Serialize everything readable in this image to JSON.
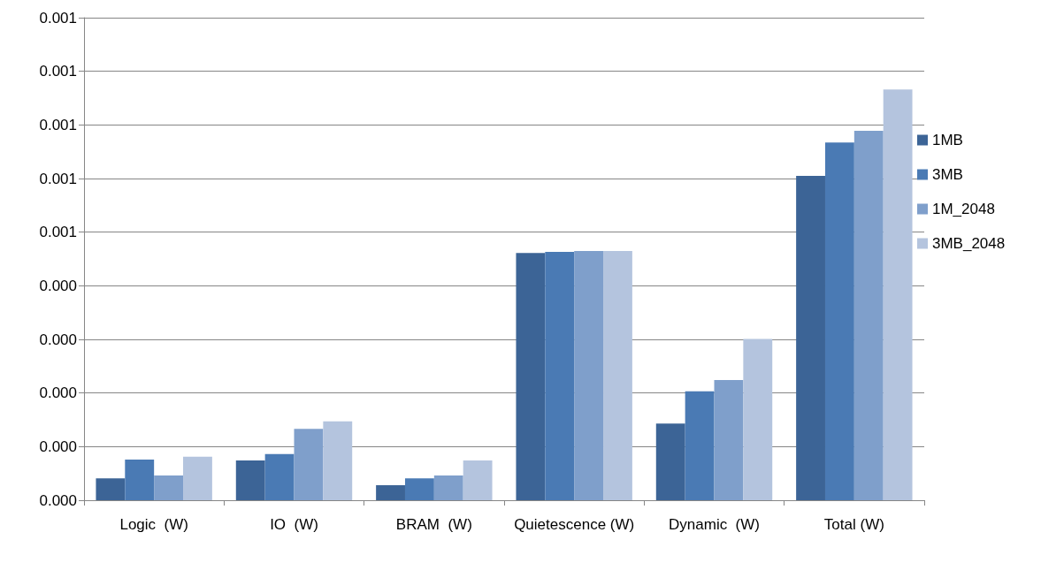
{
  "chart_data": {
    "type": "bar",
    "categories": [
      "Logic  (W)",
      "IO  (W)",
      "BRAM  (W)",
      "Quietescence (W)",
      "Dynamic  (W)",
      "Total (W)"
    ],
    "series": [
      {
        "name": "1MB",
        "color": "#3c6496",
        "values": [
          4.1e-05,
          7.4e-05,
          2.8e-05,
          0.000461,
          0.000143,
          0.000605
        ]
      },
      {
        "name": "3MB",
        "color": "#4a7ab4",
        "values": [
          7.6e-05,
          8.6e-05,
          4.1e-05,
          0.000463,
          0.000203,
          0.000667
        ]
      },
      {
        "name": "1M_2048",
        "color": "#7f9fcb",
        "values": [
          4.6e-05,
          0.000133,
          4.6e-05,
          0.000465,
          0.000224,
          0.000689
        ]
      },
      {
        "name": "3MB_2048",
        "color": "#b4c4de",
        "values": [
          8.1e-05,
          0.000147,
          7.4e-05,
          0.000465,
          0.000301,
          0.000766
        ]
      }
    ],
    "ylim": [
      0,
      0.0009
    ],
    "yticks": [
      {
        "value": 0,
        "label": "0.000"
      },
      {
        "value": 0.0001,
        "label": "0.000"
      },
      {
        "value": 0.0002,
        "label": "0.000"
      },
      {
        "value": 0.0003,
        "label": "0.000"
      },
      {
        "value": 0.0004,
        "label": "0.000"
      },
      {
        "value": 0.0005,
        "label": "0.001"
      },
      {
        "value": 0.0006,
        "label": "0.001"
      },
      {
        "value": 0.0007,
        "label": "0.001"
      },
      {
        "value": 0.0008,
        "label": "0.001"
      },
      {
        "value": 0.0009,
        "label": "0.001"
      }
    ],
    "grid": "y",
    "legend": "right"
  }
}
